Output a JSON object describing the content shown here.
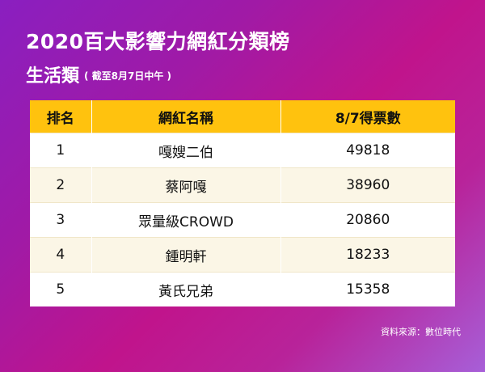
{
  "title": "2020百大影響力網紅分類榜",
  "subtitle": "生活類",
  "subtitle_note": "( 截至8月7日中午 )",
  "source": "資料來源：數位時代",
  "colors": {
    "header_bg": "#ffc20e",
    "row_alt": "#fbf6e6"
  },
  "chart_data": {
    "type": "table",
    "columns": [
      "排名",
      "網紅名稱",
      "8/7得票數"
    ],
    "rows": [
      [
        "1",
        "嘎嫂二伯",
        "49818"
      ],
      [
        "2",
        "蔡阿嘎",
        "38960"
      ],
      [
        "3",
        "眾量級CROWD",
        "20860"
      ],
      [
        "4",
        "鍾明軒",
        "18233"
      ],
      [
        "5",
        "黃氏兄弟",
        "15358"
      ]
    ]
  }
}
